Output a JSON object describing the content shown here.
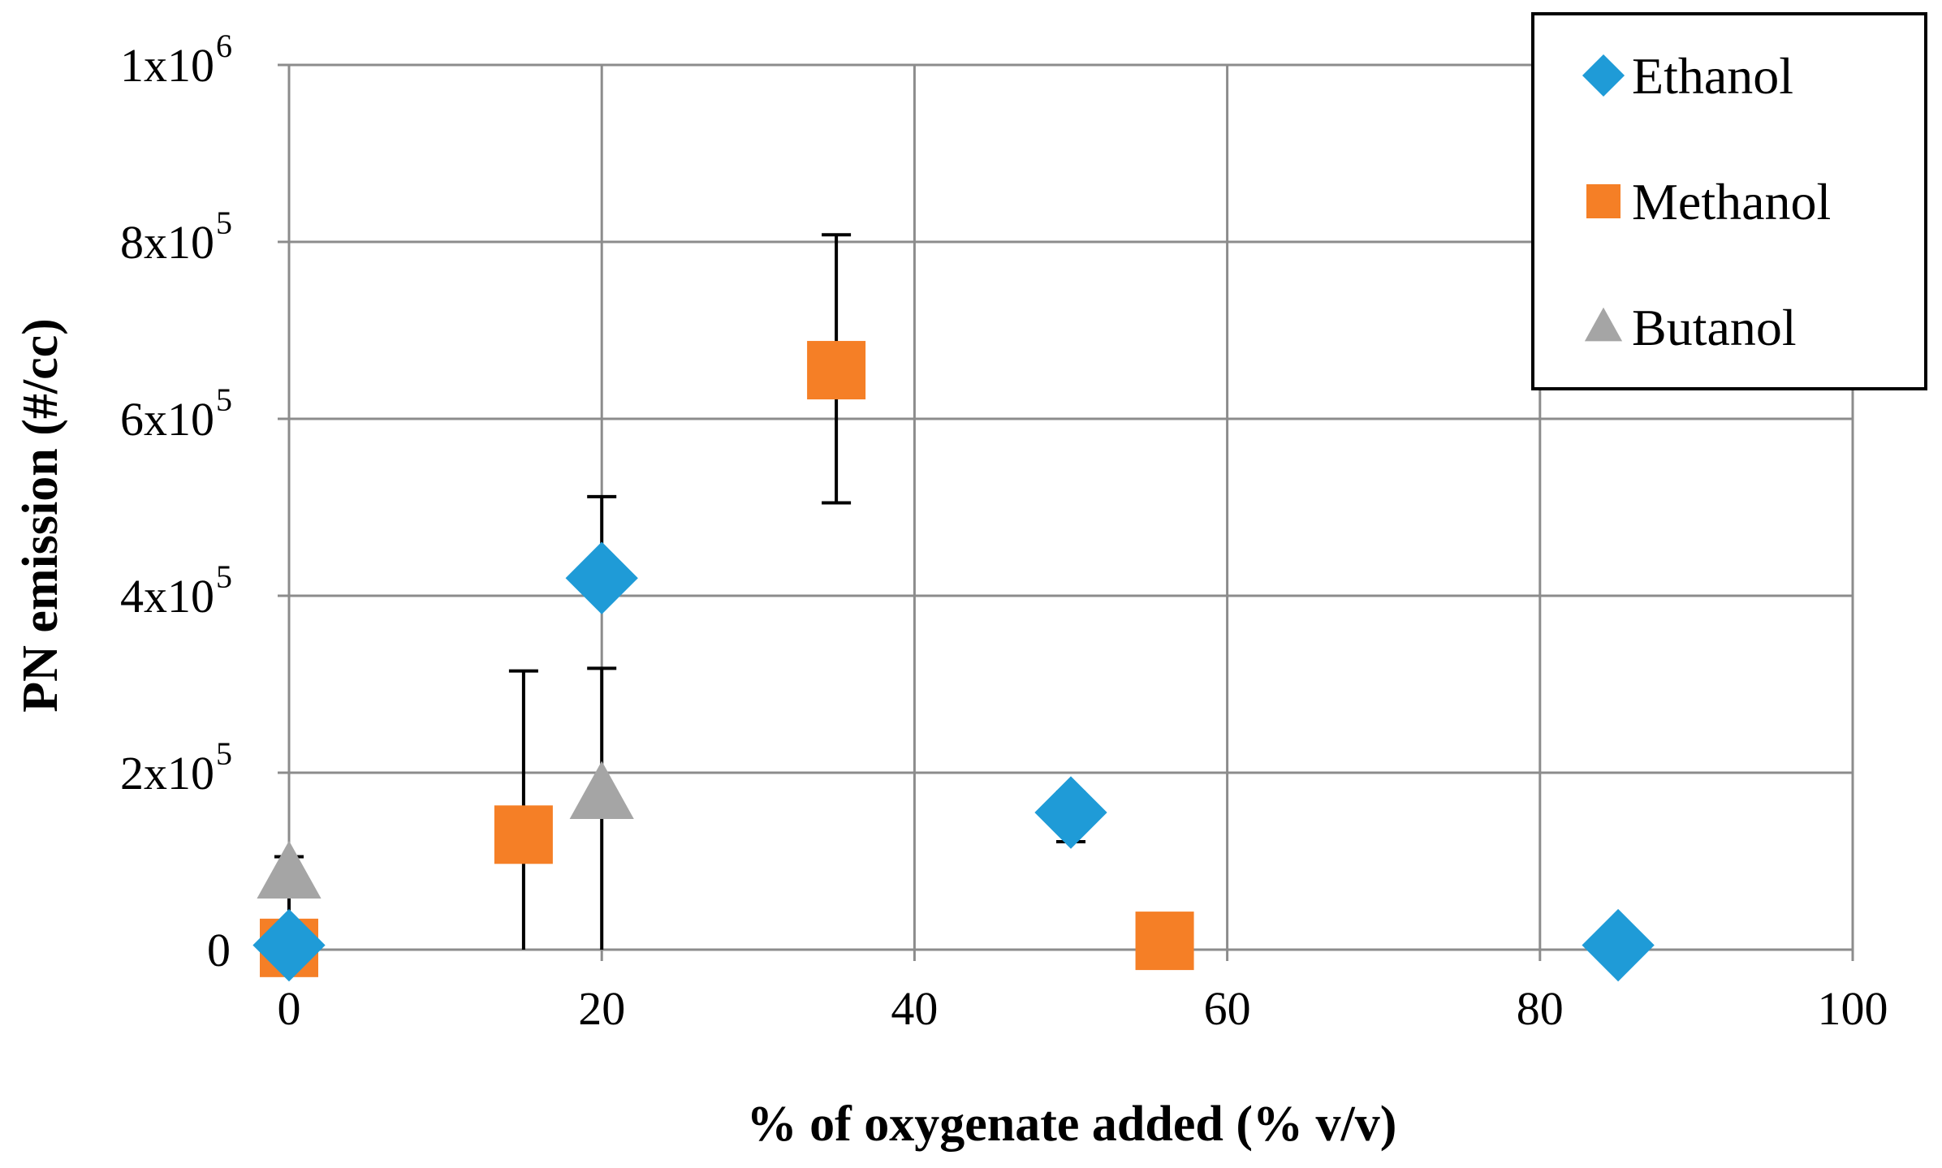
{
  "chart_data": {
    "type": "scatter",
    "xlabel": "% of oxygenate added (% v/v)",
    "ylabel": "PN emission (#/cc)",
    "xlim": [
      0,
      100
    ],
    "ylim": [
      0,
      1000000
    ],
    "grid": true,
    "legend_position": "top-right",
    "x_ticks": [
      {
        "value": 0,
        "label": "0"
      },
      {
        "value": 20,
        "label": "20"
      },
      {
        "value": 40,
        "label": "40"
      },
      {
        "value": 60,
        "label": "60"
      },
      {
        "value": 80,
        "label": "80"
      },
      {
        "value": 100,
        "label": "100"
      }
    ],
    "y_ticks": [
      {
        "value": 0,
        "mantissa": "0",
        "exponent": ""
      },
      {
        "value": 200000,
        "mantissa": "2x10",
        "exponent": "5"
      },
      {
        "value": 400000,
        "mantissa": "4x10",
        "exponent": "5"
      },
      {
        "value": 600000,
        "mantissa": "6x10",
        "exponent": "5"
      },
      {
        "value": 800000,
        "mantissa": "8x10",
        "exponent": "5"
      },
      {
        "value": 1000000,
        "mantissa": "1x10",
        "exponent": "6"
      }
    ],
    "series": [
      {
        "name": "Ethanol",
        "marker": "diamond",
        "color": "#1f9bd7",
        "points": [
          {
            "x": 0,
            "y": 5000,
            "err_low": 0,
            "err_high": 0
          },
          {
            "x": 20,
            "y": 420000,
            "err_low": 0,
            "err_high": 0
          },
          {
            "x": 50,
            "y": 155000,
            "err_low": 122000,
            "err_high": 178000
          },
          {
            "x": 85,
            "y": 5000,
            "err_low": 0,
            "err_high": 0
          }
        ]
      },
      {
        "name": "Methanol",
        "marker": "square",
        "color": "#f57f26",
        "points": [
          {
            "x": 0,
            "y": 2000,
            "err_low": 0,
            "err_high": 0
          },
          {
            "x": 15,
            "y": 130000,
            "err_low": 0,
            "err_high": 315000
          },
          {
            "x": 35,
            "y": 655000,
            "err_low": 505000,
            "err_high": 808000
          },
          {
            "x": 56,
            "y": 10000,
            "err_low": 0,
            "err_high": 0
          }
        ]
      },
      {
        "name": "Butanol",
        "marker": "triangle",
        "color": "#a5a5a5",
        "points": [
          {
            "x": 0,
            "y": 85000,
            "err_low": 0,
            "err_high": 105000
          },
          {
            "x": 20,
            "y": 175000,
            "err_low": 0,
            "err_high": 318000
          }
        ]
      }
    ],
    "extra_error_bars": [
      {
        "x": 20,
        "y_low": 420000,
        "y_high": 512000
      }
    ]
  }
}
